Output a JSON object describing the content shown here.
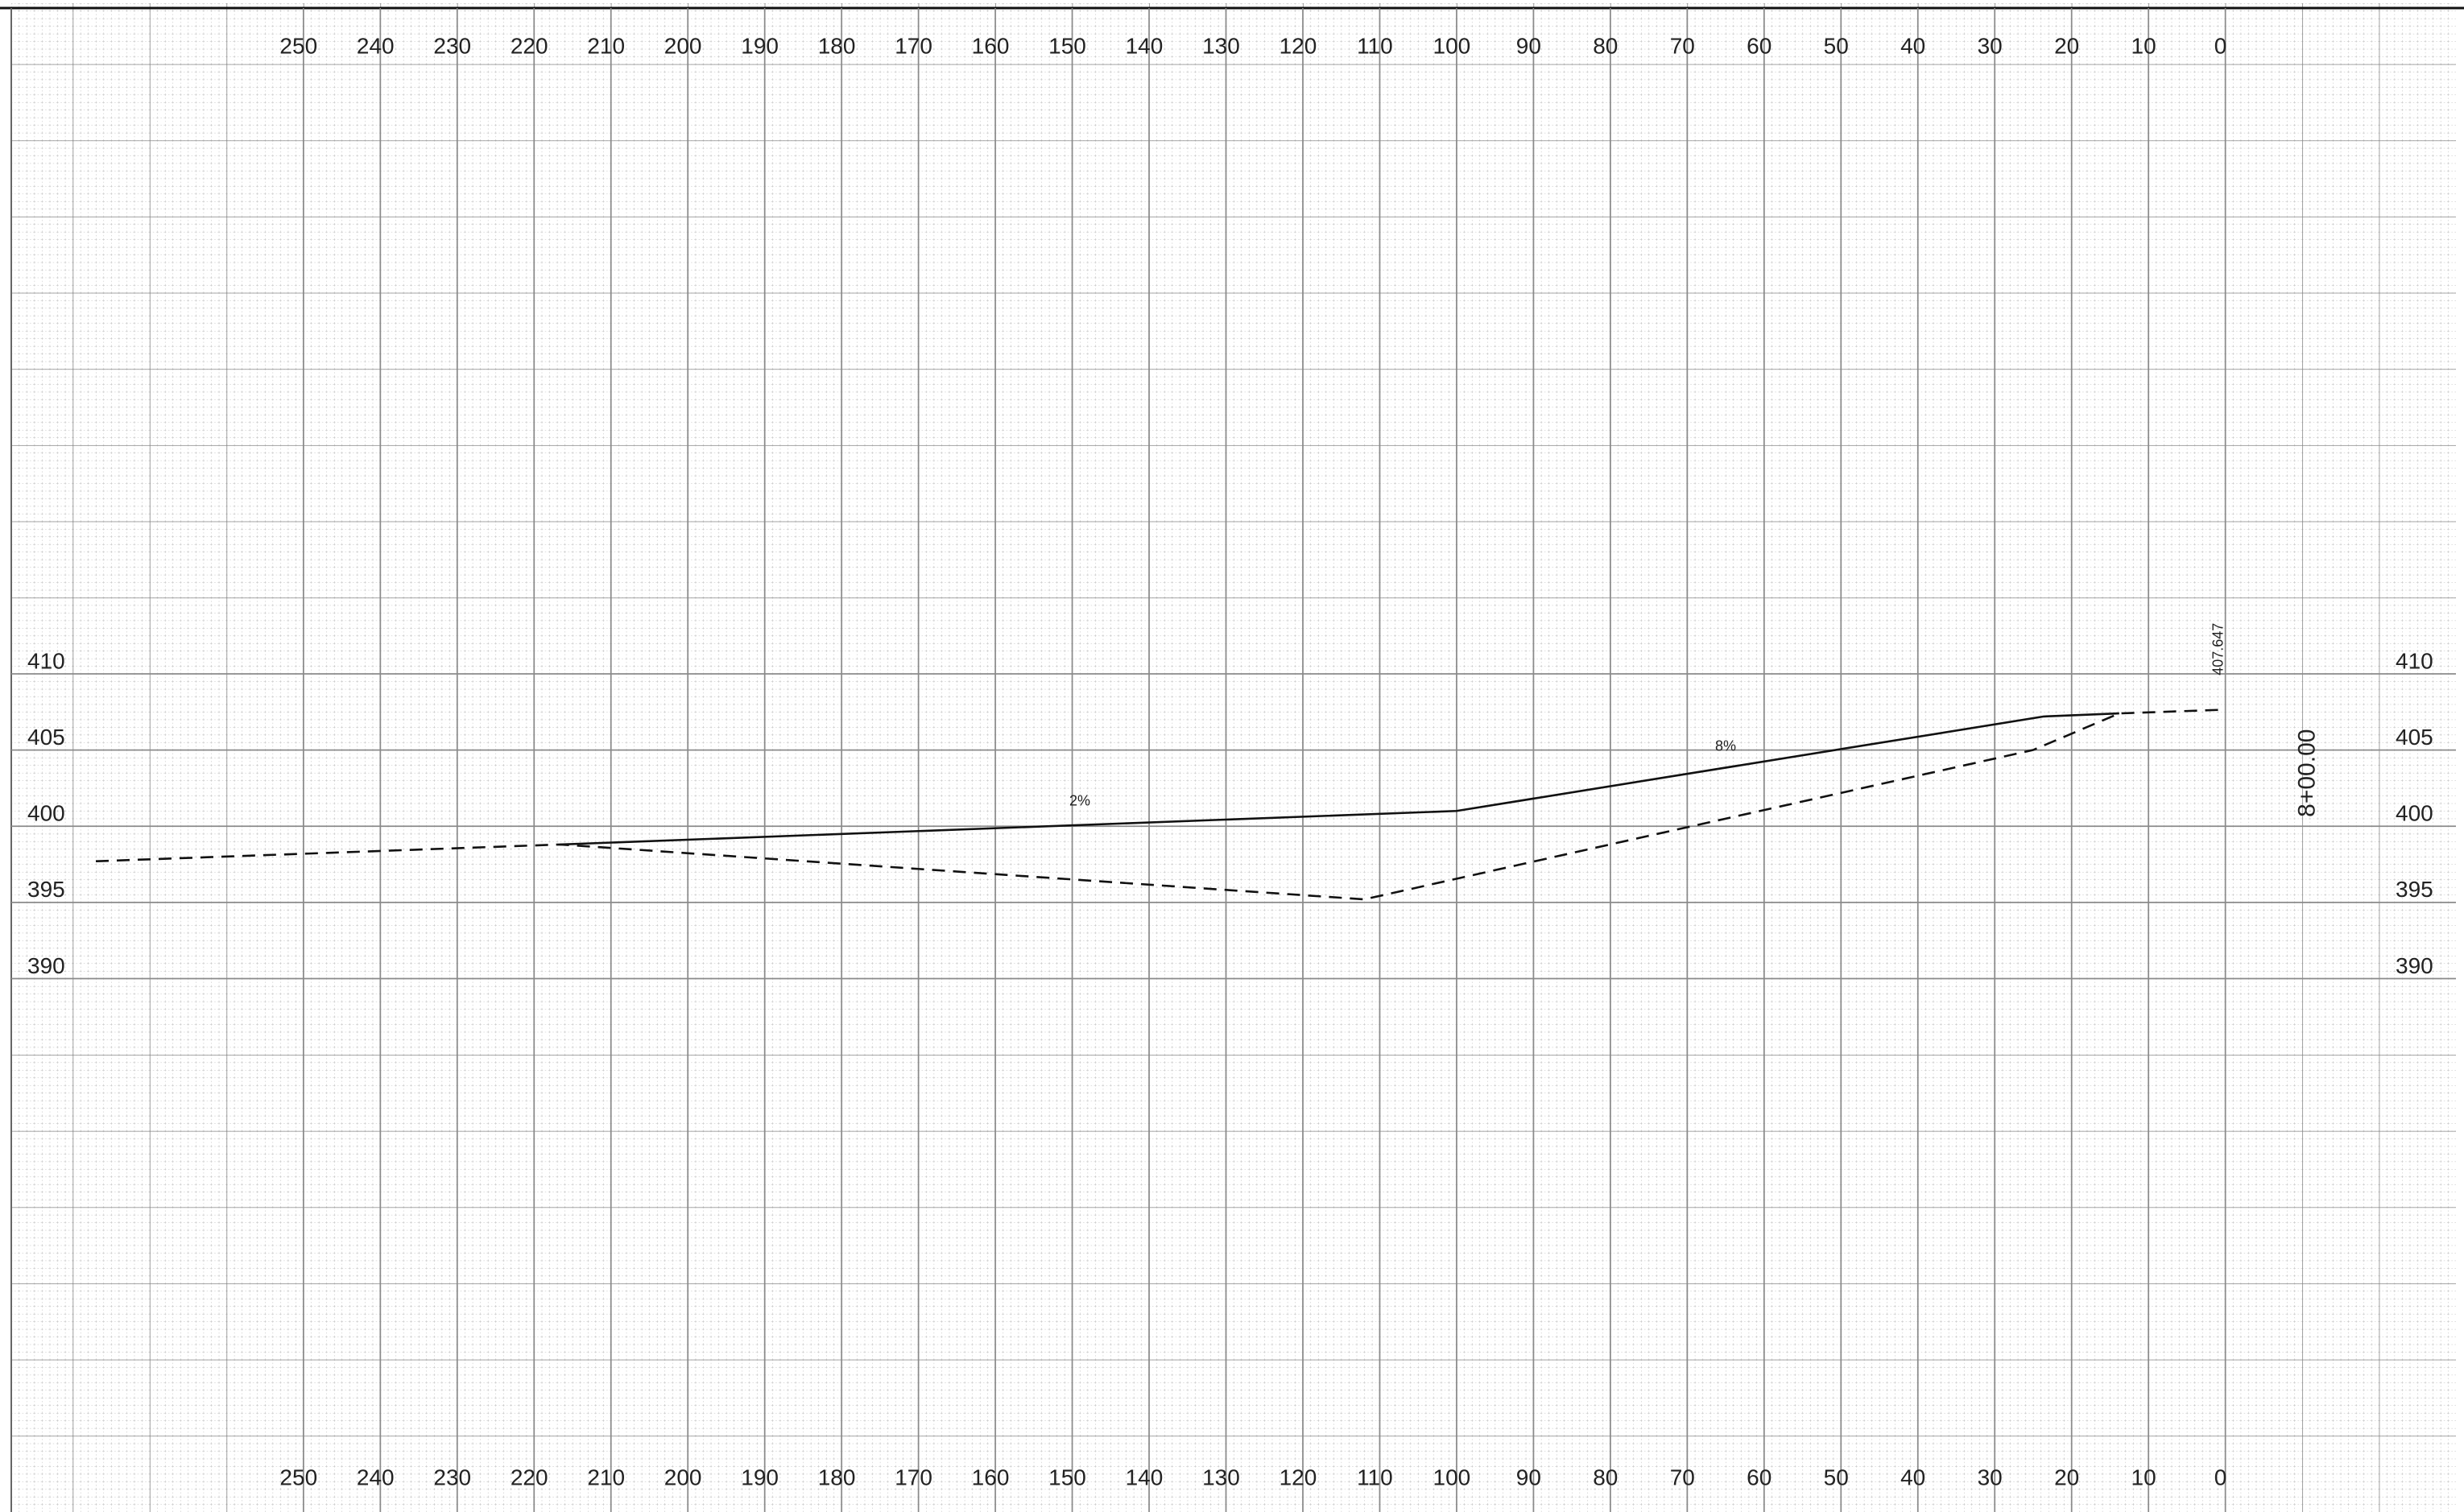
{
  "chart_data": {
    "type": "line",
    "xlim": [
      288,
      -30
    ],
    "ylim": [
      355,
      454
    ],
    "xticks": [
      250,
      240,
      230,
      220,
      210,
      200,
      190,
      180,
      170,
      160,
      150,
      140,
      130,
      120,
      110,
      100,
      90,
      80,
      70,
      60,
      50,
      40,
      30,
      20,
      10,
      0
    ],
    "yticks": [
      390,
      395,
      400,
      405,
      410
    ],
    "grid": true,
    "series": [
      {
        "color": "#111111",
        "style": "solid",
        "x": [
          216.6,
          100,
          23.6,
          13.8
        ],
        "values": [
          398.8,
          401.0,
          407.2,
          407.4
        ]
      },
      {
        "color": "#111111",
        "style": "dashed",
        "x": [
          277,
          216.6,
          112,
          25,
          13.8,
          0
        ],
        "values": [
          397.7,
          398.8,
          395.2,
          405.0,
          407.4,
          407.647
        ]
      }
    ],
    "annotations": [
      {
        "text": "2%",
        "x": 149,
        "y": 401.6,
        "rotate": 0
      },
      {
        "text": "8%",
        "x": 65,
        "y": 405.2,
        "rotate": 0
      },
      {
        "text": "407.647",
        "x": 0.8,
        "y": 409.9,
        "rotate": -90
      },
      {
        "text": "8+00.00",
        "x": -10.8,
        "y": 400.6,
        "rotate": -90
      }
    ]
  }
}
